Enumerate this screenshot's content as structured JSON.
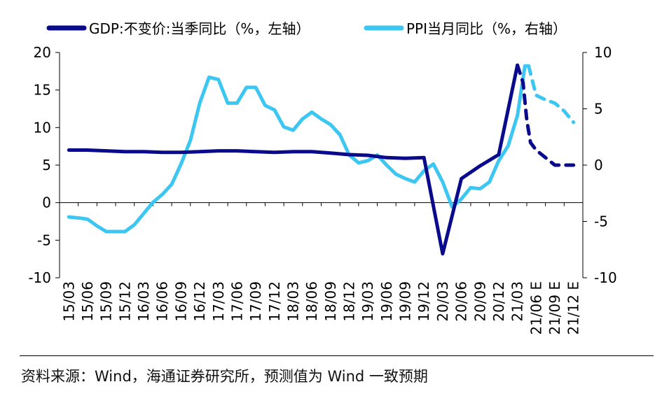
{
  "chart_data": {
    "type": "line",
    "legend": [
      "GDP:不变价:当季同比（%，左轴）",
      "PPI当月同比（%，右轴）"
    ],
    "y_left": {
      "min": -10,
      "max": 20,
      "ticks": [
        "20",
        "15",
        "10",
        "5",
        "0",
        "-5",
        "-10"
      ]
    },
    "y_right": {
      "min": -10,
      "max": 10,
      "ticks": [
        "10",
        "5",
        "0",
        "-5",
        "-10"
      ]
    },
    "x_labels": [
      "15/03",
      "15/06",
      "15/09",
      "15/12",
      "16/03",
      "16/06",
      "16/09",
      "16/12",
      "17/03",
      "17/06",
      "17/09",
      "17/12",
      "18/03",
      "18/06",
      "18/09",
      "18/12",
      "19/03",
      "19/06",
      "19/09",
      "19/12",
      "20/03",
      "20/06",
      "20/09",
      "20/12",
      "21/03",
      "21/06 E",
      "21/09 E",
      "21/12 E"
    ],
    "colors": {
      "gdp": "#0a0a8c",
      "ppi": "#3cc6f2"
    },
    "series": [
      {
        "name": "GDP:不变价:当季同比（%，左轴）",
        "axis": "left",
        "actual": [
          [
            0,
            7.0
          ],
          [
            1,
            7.0
          ],
          [
            2,
            6.9
          ],
          [
            3,
            6.8
          ],
          [
            4,
            6.8
          ],
          [
            5,
            6.7
          ],
          [
            6,
            6.7
          ],
          [
            7,
            6.8
          ],
          [
            8,
            6.9
          ],
          [
            9,
            6.9
          ],
          [
            10,
            6.8
          ],
          [
            11,
            6.7
          ],
          [
            12,
            6.8
          ],
          [
            13,
            6.8
          ],
          [
            14,
            6.6
          ],
          [
            15,
            6.4
          ],
          [
            16,
            6.3
          ],
          [
            17,
            6.0
          ],
          [
            18,
            5.9
          ],
          [
            19,
            6.0
          ],
          [
            20,
            -6.8
          ],
          [
            21,
            3.2
          ],
          [
            22,
            4.9
          ],
          [
            23,
            6.4
          ],
          [
            24,
            18.3
          ]
        ],
        "forecast": [
          [
            24,
            18.3
          ],
          [
            24.3,
            16.0
          ],
          [
            24.5,
            11.0
          ],
          [
            24.7,
            8.0
          ],
          [
            25,
            7.0
          ],
          [
            26,
            5.0
          ],
          [
            27,
            5.0
          ]
        ]
      },
      {
        "name": "PPI当月同比（%，右轴）",
        "axis": "right",
        "actual": [
          [
            0,
            -4.6
          ],
          [
            0.6,
            -4.7
          ],
          [
            1,
            -4.8
          ],
          [
            1.5,
            -5.4
          ],
          [
            2,
            -5.9
          ],
          [
            2.5,
            -5.9
          ],
          [
            3,
            -5.9
          ],
          [
            3.5,
            -5.3
          ],
          [
            4,
            -4.3
          ],
          [
            4.5,
            -3.3
          ],
          [
            5,
            -2.6
          ],
          [
            5.5,
            -1.7
          ],
          [
            6,
            0.1
          ],
          [
            6.5,
            2.2
          ],
          [
            7,
            5.5
          ],
          [
            7.5,
            7.8
          ],
          [
            8,
            7.6
          ],
          [
            8.5,
            5.5
          ],
          [
            9,
            5.5
          ],
          [
            9.5,
            6.9
          ],
          [
            10,
            6.9
          ],
          [
            10.5,
            5.3
          ],
          [
            11,
            4.9
          ],
          [
            11.5,
            3.4
          ],
          [
            12,
            3.1
          ],
          [
            12.5,
            4.1
          ],
          [
            13,
            4.7
          ],
          [
            13.5,
            4.1
          ],
          [
            14,
            3.6
          ],
          [
            14.5,
            2.7
          ],
          [
            15,
            0.9
          ],
          [
            15.5,
            0.2
          ],
          [
            16,
            0.4
          ],
          [
            16.5,
            0.9
          ],
          [
            17,
            0.0
          ],
          [
            17.5,
            -0.8
          ],
          [
            18,
            -1.2
          ],
          [
            18.5,
            -1.5
          ],
          [
            19,
            -0.5
          ],
          [
            19.5,
            0.1
          ],
          [
            20,
            -1.5
          ],
          [
            20.5,
            -3.7
          ],
          [
            21,
            -3.0
          ],
          [
            21.5,
            -2.0
          ],
          [
            22,
            -2.1
          ],
          [
            22.5,
            -1.5
          ],
          [
            23,
            0.4
          ],
          [
            23.5,
            1.7
          ],
          [
            24,
            4.4
          ],
          [
            24.4,
            8.8
          ],
          [
            24.6,
            8.8
          ]
        ],
        "forecast": [
          [
            24.6,
            8.8
          ],
          [
            25,
            6.2
          ],
          [
            25.5,
            5.8
          ],
          [
            26,
            5.5
          ],
          [
            26.5,
            4.8
          ],
          [
            27,
            3.8
          ]
        ]
      }
    ]
  },
  "footer": {
    "source": "资料来源：Wind，海通证券研究所，预测值为 Wind 一致预期"
  }
}
